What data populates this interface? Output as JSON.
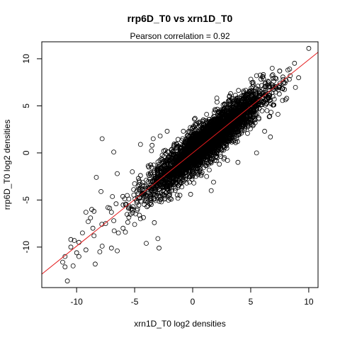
{
  "chart_data": {
    "type": "scatter",
    "title": "rrp6D_T0 vs xrn1D_T0",
    "subtitle": "Pearson correlation =  0.92",
    "xlabel": "xrn1D_T0 log2 densities",
    "ylabel": "rrp6D_T0 log2 densities",
    "xlim": [
      -13.0,
      10.8
    ],
    "ylim": [
      -14.3,
      11.8
    ],
    "xticks": [
      -10,
      -5,
      0,
      5,
      10
    ],
    "yticks": [
      -10,
      -5,
      0,
      5,
      10
    ],
    "xtick_labels": [
      "-10",
      "-5",
      "0",
      "5",
      "10"
    ],
    "ytick_labels": [
      "-10",
      "-5",
      "0",
      "5",
      "10"
    ],
    "grid": false,
    "fit_line": {
      "slope": 0.99,
      "intercept": 0.0,
      "color": "#e41a1c"
    },
    "n_background_points": 3800,
    "series": [
      {
        "marker": "open-circle",
        "points": [
          [
            10.0,
            11.1
          ],
          [
            8.2,
            8.8
          ],
          [
            8.4,
            8.2
          ],
          [
            7.5,
            8.7
          ],
          [
            7.8,
            7.8
          ],
          [
            6.9,
            8.3
          ],
          [
            6.5,
            7.6
          ],
          [
            7.2,
            6.9
          ],
          [
            6.1,
            6.8
          ],
          [
            5.2,
            7.5
          ],
          [
            5.8,
            6.1
          ],
          [
            4.6,
            6.3
          ],
          [
            6.4,
            4.5
          ],
          [
            7.0,
            5.1
          ],
          [
            8.1,
            5.8
          ],
          [
            5.5,
            8.2
          ],
          [
            3.2,
            5.6
          ],
          [
            2.1,
            5.4
          ],
          [
            5.2,
            3.0
          ],
          [
            4.5,
            2.8
          ],
          [
            3.4,
            2.9
          ],
          [
            2.8,
            3.2
          ],
          [
            1.2,
            4.1
          ],
          [
            0.5,
            3.2
          ],
          [
            -0.2,
            2.7
          ],
          [
            -0.8,
            2.3
          ],
          [
            -2.2,
            2.3
          ],
          [
            -2.8,
            1.8
          ],
          [
            -3.4,
            1.5
          ],
          [
            -1.8,
            0.4
          ],
          [
            -2.5,
            0.2
          ],
          [
            -3.5,
            0.8
          ],
          [
            -4.5,
            0.9
          ],
          [
            -6.8,
            0.1
          ],
          [
            -7.8,
            1.5
          ],
          [
            -8.3,
            -2.6
          ],
          [
            -6.5,
            -2.2
          ],
          [
            -5.2,
            -2.0
          ],
          [
            -4.5,
            -2.4
          ],
          [
            -4.0,
            -2.9
          ],
          [
            -3.5,
            -4.0
          ],
          [
            -3.0,
            -4.3
          ],
          [
            -2.6,
            -3.0
          ],
          [
            -1.8,
            -2.6
          ],
          [
            -1.2,
            -1.5
          ],
          [
            -0.7,
            -1.2
          ],
          [
            0.3,
            -1.4
          ],
          [
            0.6,
            -2.0
          ],
          [
            1.2,
            -2.5
          ],
          [
            1.8,
            -3.1
          ],
          [
            1.6,
            -4.0
          ],
          [
            2.3,
            -1.2
          ],
          [
            3.0,
            -0.8
          ],
          [
            3.9,
            -1.0
          ],
          [
            5.5,
            0.0
          ],
          [
            6.7,
            1.7
          ],
          [
            6.2,
            2.3
          ],
          [
            5.7,
            3.6
          ],
          [
            3.7,
            1.1
          ],
          [
            4.2,
            2.1
          ],
          [
            -4.3,
            -4.4
          ],
          [
            -5.5,
            -4.9
          ],
          [
            -6.6,
            -5.4
          ],
          [
            -7.3,
            -5.8
          ],
          [
            -8.7,
            -6.0
          ],
          [
            -9.2,
            -6.3
          ],
          [
            -7.9,
            -4.1
          ],
          [
            -8.8,
            -6.9
          ],
          [
            -7.5,
            -7.5
          ],
          [
            -6.8,
            -7.2
          ],
          [
            -6.0,
            -8.0
          ],
          [
            -5.8,
            -8.4
          ],
          [
            -4.5,
            -7.0
          ],
          [
            -5.5,
            -5.8
          ],
          [
            -4.8,
            -5.3
          ],
          [
            -3.3,
            -7.4
          ],
          [
            -3.0,
            -9.1
          ],
          [
            -2.9,
            -10.1
          ],
          [
            -4.0,
            -9.6
          ],
          [
            -6.5,
            -10.4
          ],
          [
            -7.0,
            -10.1
          ],
          [
            -7.8,
            -9.9
          ],
          [
            -8.5,
            -8.8
          ],
          [
            -9.8,
            -9.5
          ],
          [
            -9.5,
            -8.5
          ],
          [
            -10.2,
            -9.3
          ],
          [
            -10.5,
            -10.0
          ],
          [
            -10.0,
            -10.6
          ],
          [
            -9.8,
            -11.0
          ],
          [
            -11.2,
            -11.6
          ],
          [
            -11.0,
            -11.0
          ],
          [
            -10.3,
            -12.0
          ],
          [
            -11.0,
            -12.1
          ],
          [
            -10.5,
            -9.2
          ],
          [
            -9.2,
            -10.3
          ],
          [
            -10.8,
            -13.6
          ],
          [
            -8.4,
            -11.8
          ],
          [
            -8.0,
            -10.5
          ],
          [
            -8.6,
            -8.0
          ],
          [
            -9.0,
            -7.3
          ],
          [
            -8.5,
            -6.2
          ],
          [
            -7.0,
            -6.3
          ],
          [
            -6.4,
            -8.5
          ],
          [
            -5.0,
            -7.6
          ],
          [
            -4.8,
            -6.1
          ],
          [
            -3.7,
            -5.4
          ],
          [
            -2.7,
            -5.2
          ],
          [
            -2.4,
            -4.6
          ],
          [
            -1.8,
            -4.0
          ],
          [
            -1.1,
            -4.5
          ]
        ]
      }
    ]
  }
}
